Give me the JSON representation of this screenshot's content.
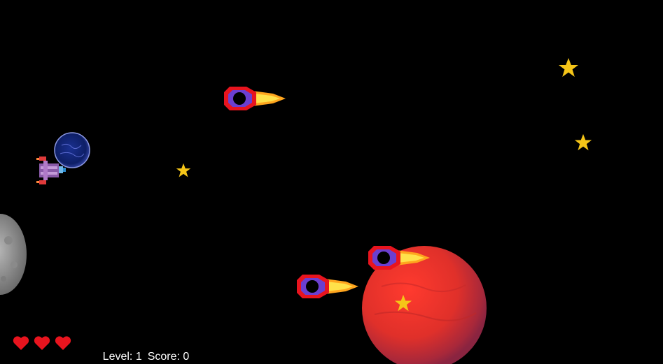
{
  "hud": {
    "lives": 3,
    "level_label": "Level: 1",
    "score_label": "Score: 0"
  },
  "colors": {
    "background": "#000000",
    "star": "#f5c518",
    "heart": "#e8141e",
    "planet_red": "#e8332e",
    "planet_blue": "#0e1f66",
    "moon_gray": "#9a9a9a"
  },
  "sprites": {
    "player": "player-ship-icon",
    "enemy": "enemy-fireball-ship-icon",
    "star": "star-icon",
    "heart": "heart-icon"
  }
}
